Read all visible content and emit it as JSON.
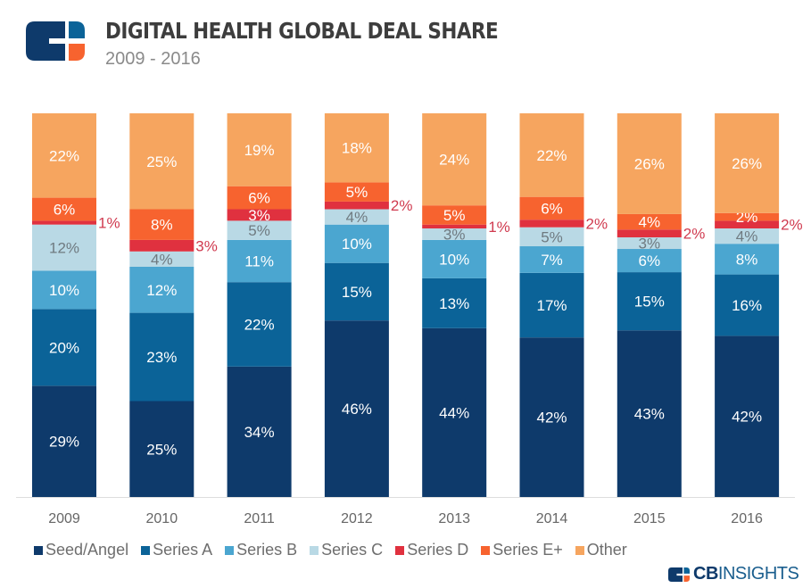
{
  "header": {
    "title": "DIGITAL HEALTH GLOBAL DEAL SHARE",
    "subtitle": "2009 - 2016"
  },
  "brand": {
    "prefix": "CB",
    "suffix": "INSIGHTS"
  },
  "chart_data": {
    "type": "bar",
    "stacked": true,
    "title": "DIGITAL HEALTH GLOBAL DEAL SHARE",
    "subtitle": "2009 - 2016",
    "xlabel": "",
    "ylabel": "",
    "ylim": [
      0,
      100
    ],
    "unit": "%",
    "grid": false,
    "legend_position": "bottom",
    "categories": [
      "2009",
      "2010",
      "2011",
      "2012",
      "2013",
      "2014",
      "2015",
      "2016"
    ],
    "series": [
      {
        "name": "Seed/Angel",
        "color": "#0e3a6b",
        "label_color": "#ffffff",
        "values": [
          29,
          25,
          34,
          46,
          44,
          42,
          43,
          42
        ]
      },
      {
        "name": "Series A",
        "color": "#0b6398",
        "label_color": "#ffffff",
        "values": [
          20,
          23,
          22,
          15,
          13,
          17,
          15,
          16
        ]
      },
      {
        "name": "Series B",
        "color": "#4ba6d0",
        "label_color": "#ffffff",
        "values": [
          10,
          12,
          11,
          10,
          10,
          7,
          6,
          8
        ]
      },
      {
        "name": "Series C",
        "color": "#b9d9e5",
        "label_color": "#6f7a80",
        "values": [
          12,
          4,
          5,
          4,
          3,
          5,
          3,
          4
        ]
      },
      {
        "name": "Series D",
        "color": "#e0313f",
        "label_color": "#d03a4f",
        "values": [
          1,
          3,
          3,
          2,
          1,
          2,
          2,
          2
        ]
      },
      {
        "name": "Series E+",
        "color": "#f7632f",
        "label_color": "#ffffff",
        "values": [
          6,
          8,
          6,
          5,
          5,
          6,
          4,
          2
        ]
      },
      {
        "name": "Other",
        "color": "#f6a55f",
        "label_color": "#ffffff",
        "values": [
          22,
          25,
          19,
          18,
          24,
          22,
          26,
          26
        ]
      }
    ],
    "outside_labels": {
      "series": "Series D",
      "color": "#d03a4f"
    },
    "inside_exception": {
      "series": "Series D",
      "category": "2011"
    }
  }
}
